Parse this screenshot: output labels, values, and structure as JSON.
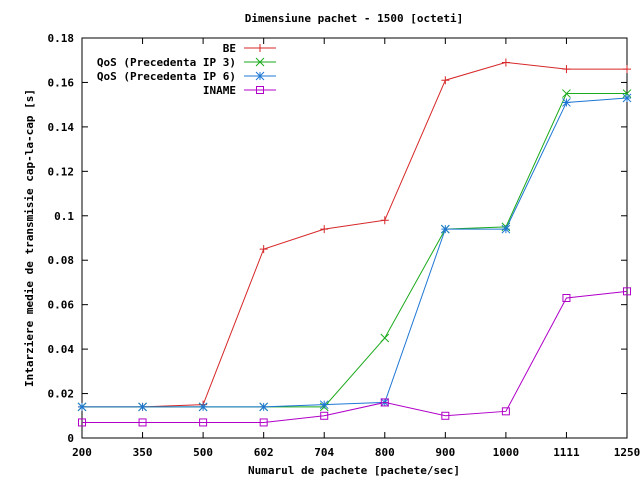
{
  "chart_data": {
    "type": "line",
    "title": "Dimensiune pachet - 1500 [octeti]",
    "xlabel": "Numarul de pachete [pachete/sec]",
    "ylabel": "Intarziere medie de transmisie cap-la-cap [s]",
    "categories": [
      "200",
      "350",
      "500",
      "602",
      "704",
      "800",
      "900",
      "1000",
      "1111",
      "1250"
    ],
    "ylim": [
      0,
      0.18
    ],
    "yticks": [
      "0",
      "0.02",
      "0.04",
      "0.06",
      "0.08",
      "0.1",
      "0.12",
      "0.14",
      "0.16",
      "0.18"
    ],
    "legend_position": "top-right",
    "grid": false,
    "series": [
      {
        "name": "BE",
        "color": "#d62728",
        "marker": "plus",
        "values": [
          0.014,
          0.014,
          0.015,
          0.085,
          0.094,
          0.098,
          0.161,
          0.169,
          0.166,
          0.166
        ]
      },
      {
        "name": "QoS (Precedenta IP 3)",
        "color": "#1aaa1a",
        "marker": "cross",
        "values": [
          0.014,
          0.014,
          0.014,
          0.014,
          0.014,
          0.045,
          0.094,
          0.095,
          0.155,
          0.155
        ]
      },
      {
        "name": "QoS (Precedenta IP 6)",
        "color": "#1f77d4",
        "marker": "star",
        "values": [
          0.014,
          0.014,
          0.014,
          0.014,
          0.015,
          0.016,
          0.094,
          0.094,
          0.151,
          0.153
        ]
      },
      {
        "name": "INAME",
        "color": "#b000c8",
        "marker": "square",
        "values": [
          0.007,
          0.007,
          0.007,
          0.007,
          0.01,
          0.016,
          0.01,
          0.012,
          0.063,
          0.066
        ]
      }
    ]
  }
}
